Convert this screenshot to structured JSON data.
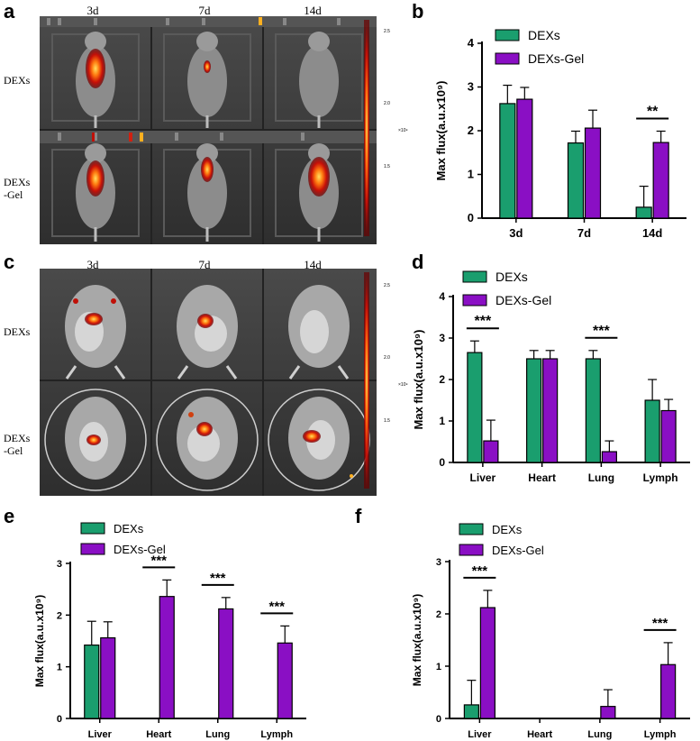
{
  "panels": {
    "a": "a",
    "b": "b",
    "c": "c",
    "d": "d",
    "e": "e",
    "f": "f"
  },
  "imaging": {
    "columns": [
      "3d",
      "7d",
      "14d"
    ],
    "rows": [
      "DEXs",
      "DEXs\n-Gel"
    ],
    "scale_labels": [
      "2.5",
      "2.0",
      "×10⁹",
      "1.5"
    ]
  },
  "colors": {
    "dexs": "#1a9e6e",
    "dexs_gel": "#8a0fc4",
    "axis": "#000000"
  },
  "chart_data": [
    {
      "id": "b",
      "type": "bar",
      "categories": [
        "3d",
        "7d",
        "14d"
      ],
      "series": [
        {
          "name": "DEXs",
          "values": [
            2.62,
            1.72,
            0.25
          ],
          "errors": [
            0.42,
            0.27,
            0.48
          ]
        },
        {
          "name": "DEXs-Gel",
          "values": [
            2.72,
            2.06,
            1.73
          ],
          "errors": [
            0.27,
            0.41,
            0.26
          ]
        }
      ],
      "ylabel": "Max flux(a.u.x10⁹)",
      "ylim": [
        0,
        4
      ],
      "yticks": [
        0,
        1,
        2,
        3,
        4
      ],
      "legend": "top-left",
      "significance": [
        {
          "category": "14d",
          "label": "**"
        }
      ]
    },
    {
      "id": "d",
      "type": "bar",
      "categories": [
        "Liver",
        "Heart",
        "Lung",
        "Lymph"
      ],
      "series": [
        {
          "name": "DEXs",
          "values": [
            2.65,
            2.5,
            2.5,
            1.5
          ],
          "errors": [
            0.28,
            0.2,
            0.2,
            0.5
          ]
        },
        {
          "name": "DEXs-Gel",
          "values": [
            0.52,
            2.5,
            0.26,
            1.25
          ],
          "errors": [
            0.5,
            0.2,
            0.26,
            0.27
          ]
        }
      ],
      "ylabel": "Max flux(a.u.x10⁹)",
      "ylim": [
        0,
        4
      ],
      "yticks": [
        0,
        1,
        2,
        3,
        4
      ],
      "legend": "top-left",
      "significance": [
        {
          "category": "Liver",
          "label": "***"
        },
        {
          "category": "Lung",
          "label": "***"
        }
      ]
    },
    {
      "id": "e",
      "type": "bar",
      "categories": [
        "Liver",
        "Heart",
        "Lung",
        "Lymph"
      ],
      "series": [
        {
          "name": "DEXs",
          "values": [
            1.42,
            0,
            0,
            0
          ],
          "errors": [
            0.46,
            0,
            0,
            0
          ]
        },
        {
          "name": "DEXs-Gel",
          "values": [
            1.56,
            2.36,
            2.12,
            1.46
          ],
          "errors": [
            0.31,
            0.32,
            0.22,
            0.33
          ]
        }
      ],
      "ylabel": "Max flux(a.u.x10⁹)",
      "ylim": [
        0,
        3
      ],
      "yticks": [
        0,
        1,
        2,
        3
      ],
      "legend": "top-left",
      "significance": [
        {
          "category": "Heart",
          "label": "***"
        },
        {
          "category": "Lung",
          "label": "***"
        },
        {
          "category": "Lymph",
          "label": "***"
        }
      ]
    },
    {
      "id": "f",
      "type": "bar",
      "categories": [
        "Liver",
        "Heart",
        "Lung",
        "Lymph"
      ],
      "series": [
        {
          "name": "DEXs",
          "values": [
            0.26,
            0,
            0,
            0
          ],
          "errors": [
            0.47,
            0,
            0,
            0
          ]
        },
        {
          "name": "DEXs-Gel",
          "values": [
            2.12,
            0,
            0.23,
            1.03
          ],
          "errors": [
            0.33,
            0,
            0.32,
            0.42
          ]
        }
      ],
      "ylabel": "Max flux(a.u.x10⁹)",
      "ylim": [
        0,
        3
      ],
      "yticks": [
        0,
        1,
        2,
        3
      ],
      "legend": "top-left",
      "significance": [
        {
          "category": "Liver",
          "label": "***"
        },
        {
          "category": "Lymph",
          "label": "***"
        }
      ]
    }
  ]
}
